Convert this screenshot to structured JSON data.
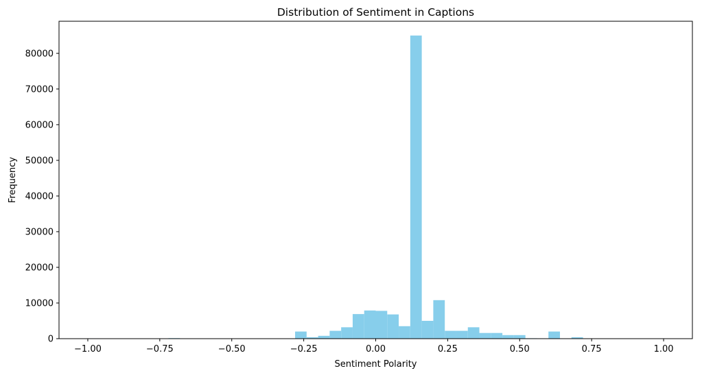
{
  "chart_data": {
    "type": "bar",
    "title": "Distribution of Sentiment in Captions",
    "xlabel": "Sentiment Polarity",
    "ylabel": "Frequency",
    "xlim": [
      -1.1,
      1.1
    ],
    "ylim": [
      0,
      89000
    ],
    "x_ticks": [
      {
        "value": -1.0,
        "label": "−1.00"
      },
      {
        "value": -0.75,
        "label": "−0.75"
      },
      {
        "value": -0.5,
        "label": "−0.50"
      },
      {
        "value": -0.25,
        "label": "−0.25"
      },
      {
        "value": 0.0,
        "label": "0.00"
      },
      {
        "value": 0.25,
        "label": "0.25"
      },
      {
        "value": 0.5,
        "label": "0.50"
      },
      {
        "value": 0.75,
        "label": "0.75"
      },
      {
        "value": 1.0,
        "label": "1.00"
      }
    ],
    "y_ticks": [
      {
        "value": 0,
        "label": "0"
      },
      {
        "value": 10000,
        "label": "10000"
      },
      {
        "value": 20000,
        "label": "20000"
      },
      {
        "value": 30000,
        "label": "30000"
      },
      {
        "value": 40000,
        "label": "40000"
      },
      {
        "value": 50000,
        "label": "50000"
      },
      {
        "value": 60000,
        "label": "60000"
      },
      {
        "value": 70000,
        "label": "70000"
      },
      {
        "value": 80000,
        "label": "80000"
      }
    ],
    "bin_start": -1.0,
    "bin_width": 0.04,
    "values": [
      100,
      50,
      50,
      50,
      50,
      80,
      50,
      150,
      50,
      50,
      50,
      50,
      50,
      50,
      50,
      50,
      30,
      60,
      2000,
      400,
      800,
      2200,
      3200,
      6900,
      7900,
      7800,
      6800,
      3500,
      85000,
      5000,
      10800,
      2200,
      2200,
      3200,
      1600,
      1600,
      1000,
      1000,
      120,
      100,
      2000,
      100,
      400,
      50,
      50,
      50,
      50,
      50,
      50,
      50
    ],
    "bar_color": "#87CEEB",
    "grid": false,
    "legend": "none"
  }
}
